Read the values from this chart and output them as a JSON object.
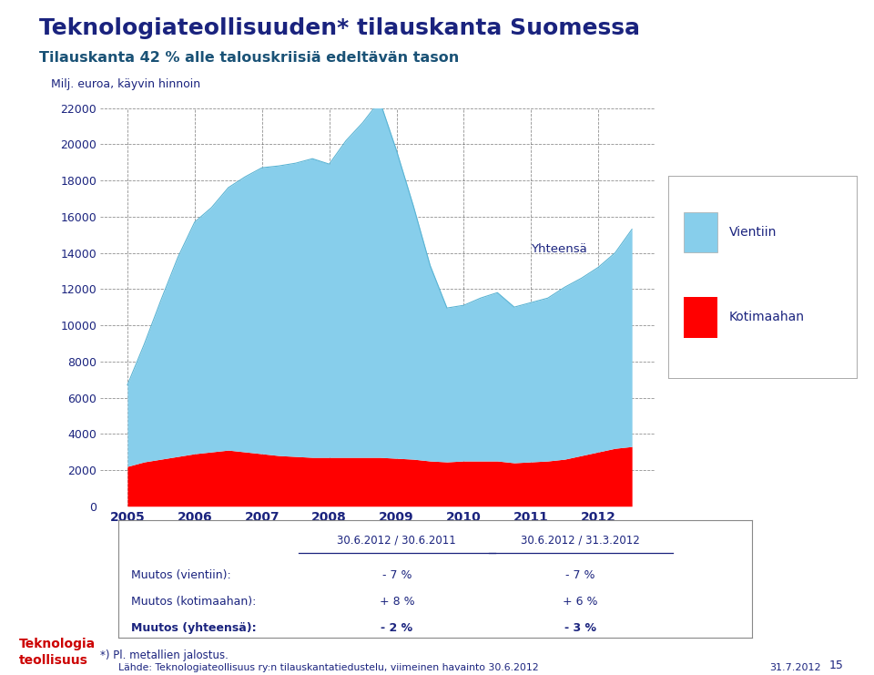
{
  "title1": "Teknologiateollisuuden* tilauskanta Suomessa",
  "title2": "Tilauskanta 42 % alle talouskriisiä edeltävän tason",
  "ylabel": "Milj. euroa, käyvin hinnoin",
  "legend_vientiin": "Vientiin",
  "legend_kotimaahan": "Kotimaahan",
  "yhteensa_label": "Yhteensä",
  "color_vientiin": "#87CEEB",
  "color_kotimaahan": "#FF0000",
  "color_title": "#1a237e",
  "color_subtitle": "#1a5276",
  "footnote": "*) Pl. metallien jalostus.",
  "source": "Lähde: Teknologiateollisuus ry:n tilauskantatiedustelu, viimeinen havainto 30.6.2012",
  "date_stamp": "31.7.2012",
  "page_num": "15",
  "kotimaahan": [
    2200,
    2450,
    2600,
    2750,
    2900,
    3000,
    3100,
    3000,
    2900,
    2800,
    2750,
    2700,
    2700,
    2700,
    2700,
    2700,
    2650,
    2600,
    2500,
    2450,
    2500,
    2500,
    2500,
    2400,
    2450,
    2500,
    2600,
    2800,
    3000,
    3200,
    3300
  ],
  "vientiin": [
    4500,
    6500,
    8800,
    11000,
    12800,
    13500,
    14500,
    15200,
    15800,
    16000,
    16200,
    16500,
    16200,
    17500,
    18500,
    19700,
    17000,
    14000,
    10800,
    8500,
    8600,
    9000,
    9300,
    8600,
    8800,
    9000,
    9500,
    9800,
    10200,
    10800,
    12000
  ],
  "table_col1_header": "30.6.2012 / 30.6.2011",
  "table_col2_header": "30.6.2012 / 31.3.2012",
  "table_row1_label": "Muutos (vientiin):",
  "table_row2_label": "Muutos (kotimaahan):",
  "table_row3_label": "Muutos (yhteensä):",
  "table_row1_col1": "- 7 %",
  "table_row1_col2": "- 7 %",
  "table_row2_col1": "+ 8 %",
  "table_row2_col2": "+ 6 %",
  "table_row3_col1": "- 2 %",
  "table_row3_col2": "- 3 %",
  "ylim": [
    0,
    22000
  ],
  "yticks": [
    0,
    2000,
    4000,
    6000,
    8000,
    10000,
    12000,
    14000,
    16000,
    18000,
    20000,
    22000
  ],
  "background_color": "#ffffff",
  "grid_color": "#555555",
  "logo_text_line1": "Teknologia",
  "logo_text_line2": "teollisuus",
  "logo_color": "#cc0000"
}
